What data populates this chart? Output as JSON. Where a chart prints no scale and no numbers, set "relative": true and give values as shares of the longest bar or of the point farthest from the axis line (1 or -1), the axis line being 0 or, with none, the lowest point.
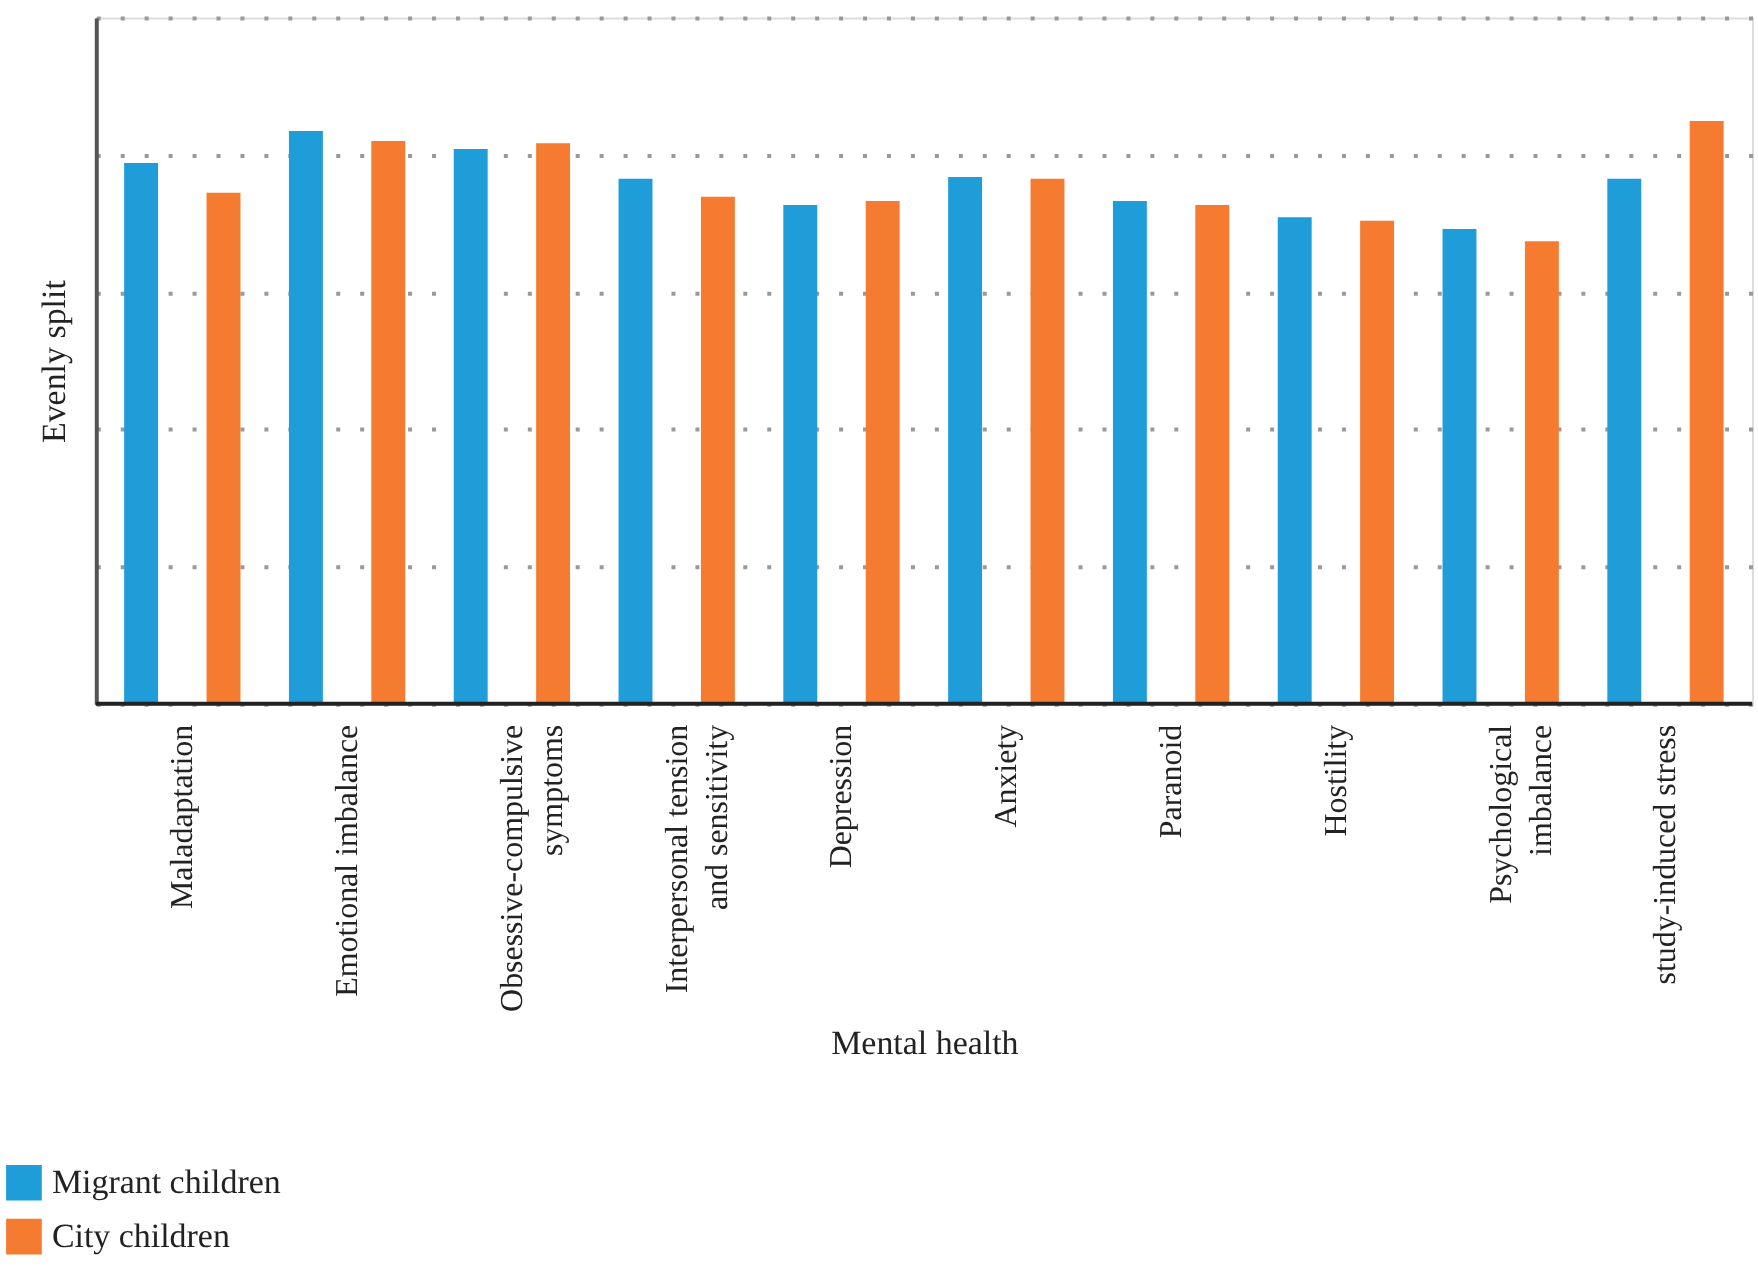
{
  "chart_data": {
    "type": "bar",
    "relative": true,
    "xlabel": "Mental health",
    "ylabel": "Evenly split",
    "categories": [
      "Maladaptation",
      "Emotional imbalance",
      "Obsessive-compulsive symptoms",
      "Interpersonal tension and sensitivity",
      "Depression",
      "Anxiety",
      "Paranoid",
      "Hostility",
      "Psychological imbalance",
      "study-induced stress"
    ],
    "series": [
      {
        "name": "Migrant children",
        "color": "#1e9dd8",
        "values": [
          0.928,
          0.983,
          0.952,
          0.901,
          0.856,
          0.904,
          0.863,
          0.835,
          0.815,
          0.901
        ]
      },
      {
        "name": "City children",
        "color": "#f47b30",
        "values": [
          0.877,
          0.966,
          0.962,
          0.87,
          0.863,
          0.901,
          0.856,
          0.829,
          0.794,
          1.0
        ]
      }
    ],
    "grid": "y",
    "legend": "bottom left"
  }
}
